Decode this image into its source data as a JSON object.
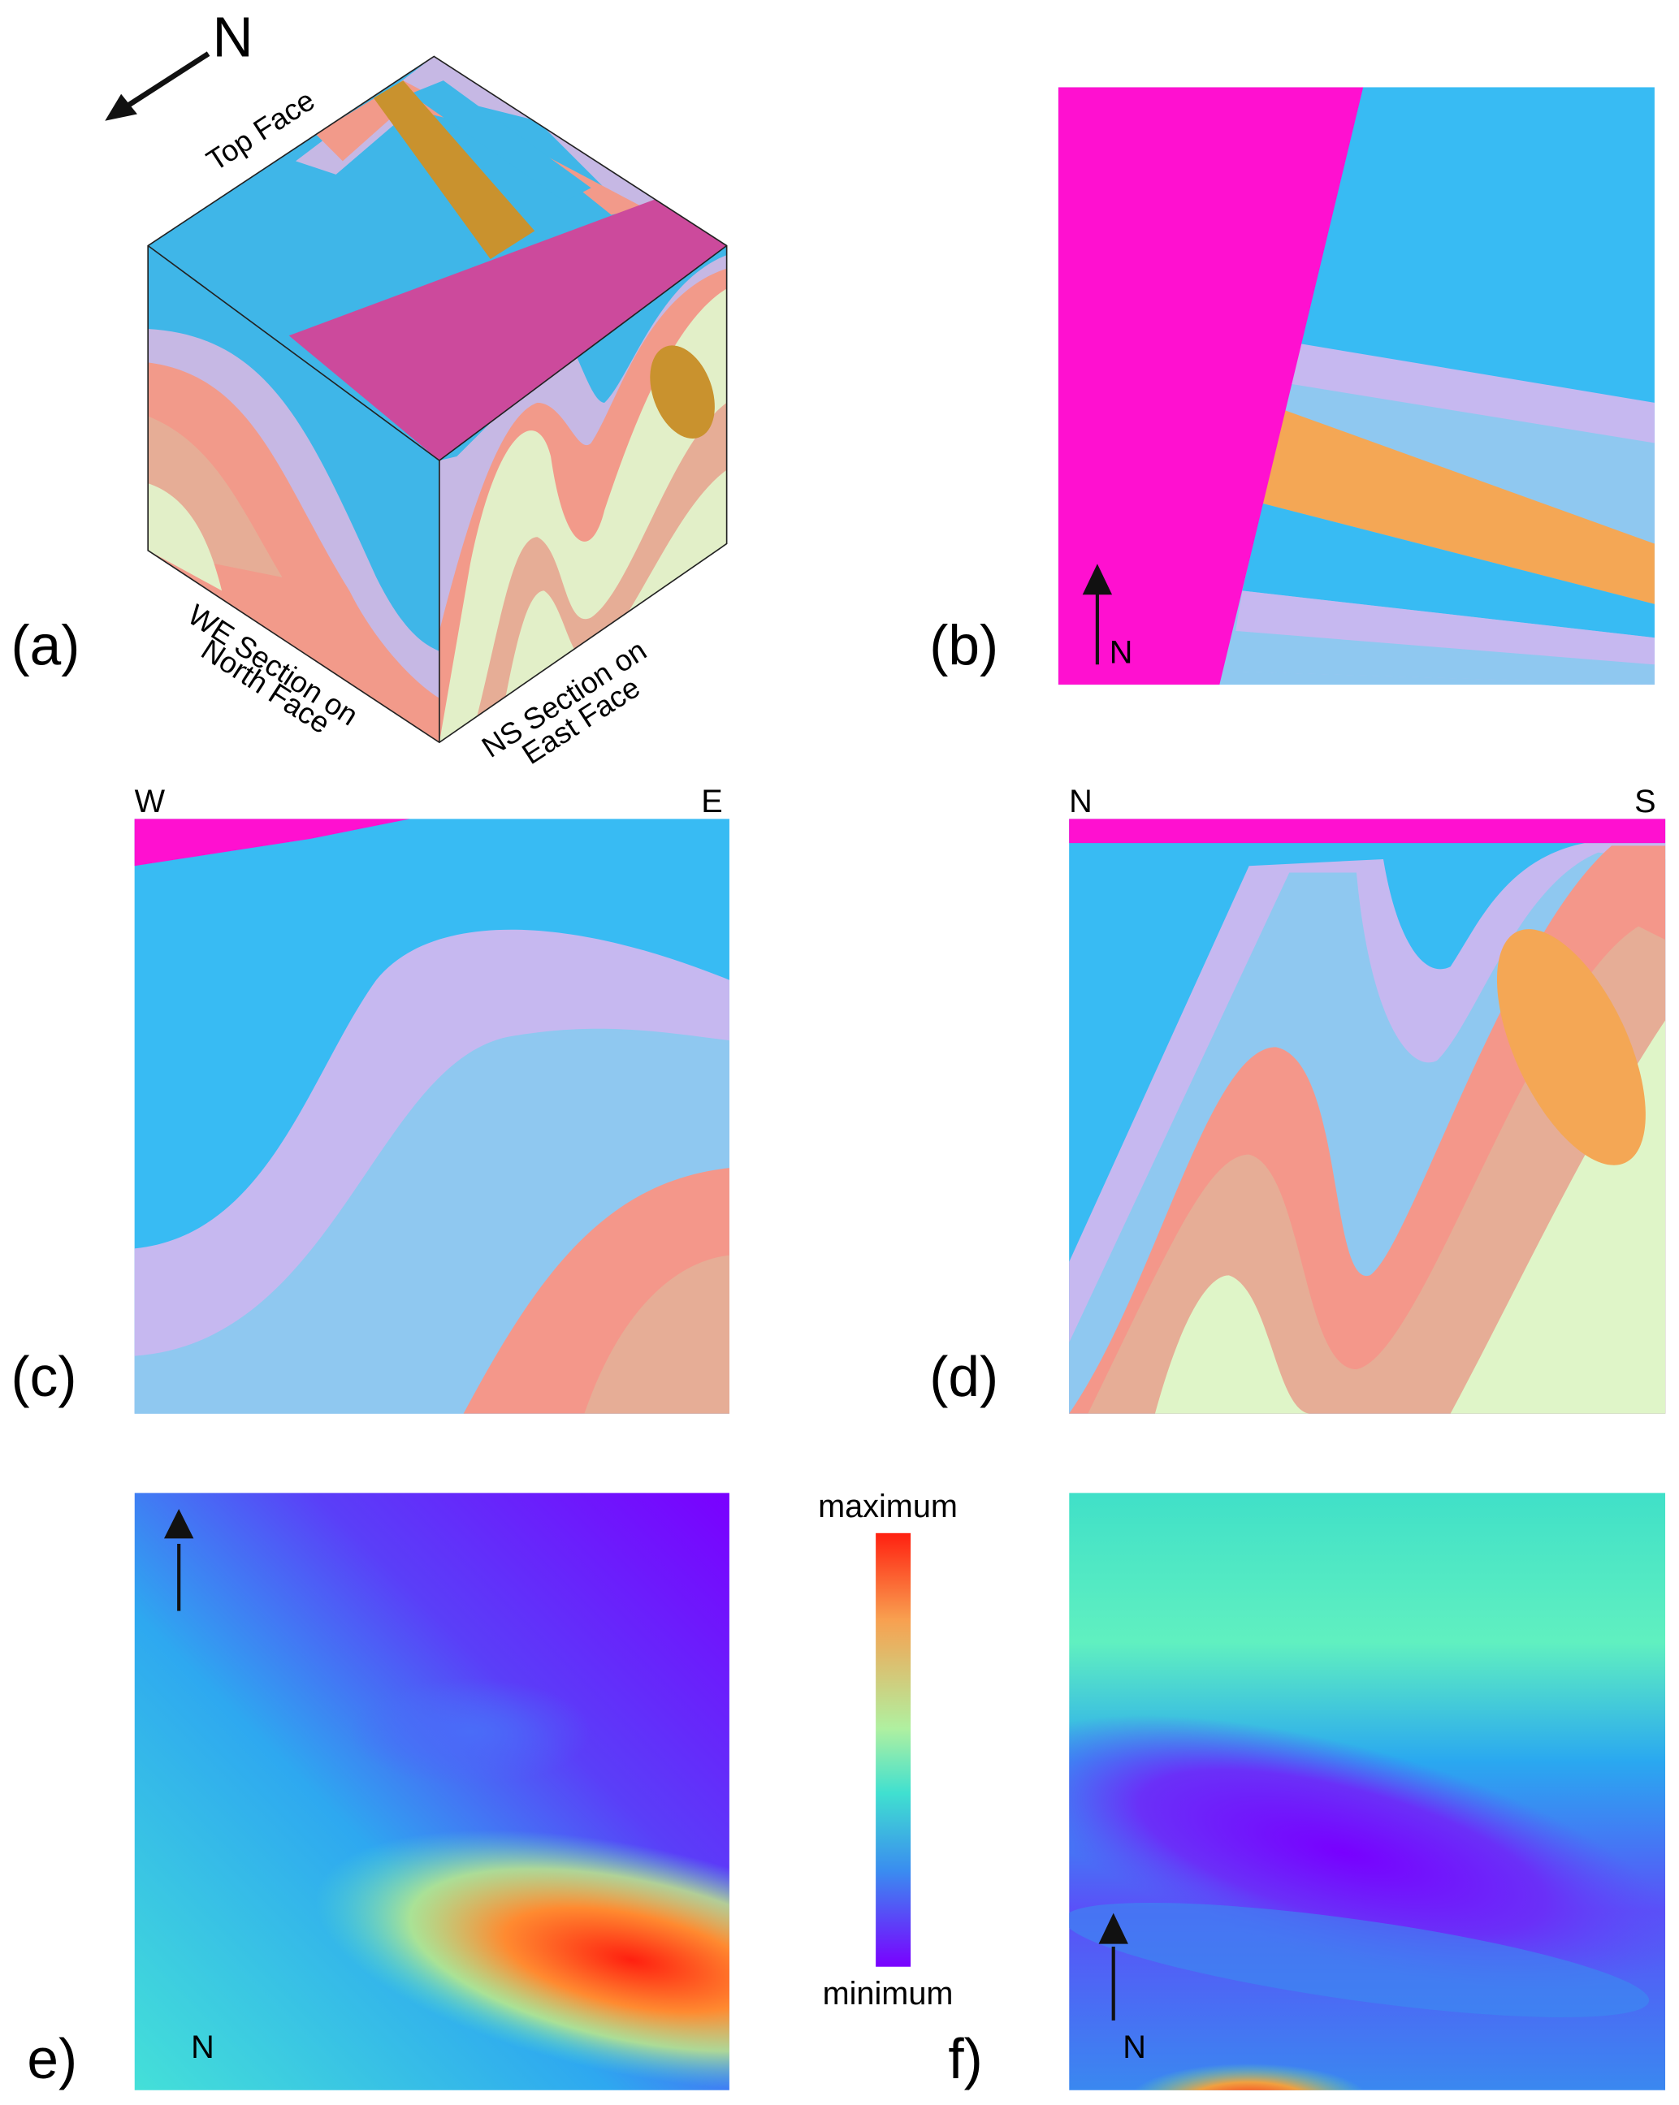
{
  "panels": {
    "a": {
      "label": "(a)",
      "north": "N",
      "top_face": "Top Face",
      "north_face": [
        "WE Section on",
        "North Face"
      ],
      "east_face": [
        "NS Section on",
        "East Face"
      ]
    },
    "b": {
      "label": "(b)",
      "north": "N"
    },
    "c": {
      "label": "(c)",
      "left": "W",
      "right": "E"
    },
    "d": {
      "label": "(d)",
      "left": "N",
      "right": "S"
    },
    "e": {
      "label": "e)",
      "north": "N"
    },
    "f": {
      "label": "f)",
      "north": "N"
    }
  },
  "colorbar": {
    "max": "maximum",
    "min": "minimum"
  }
}
